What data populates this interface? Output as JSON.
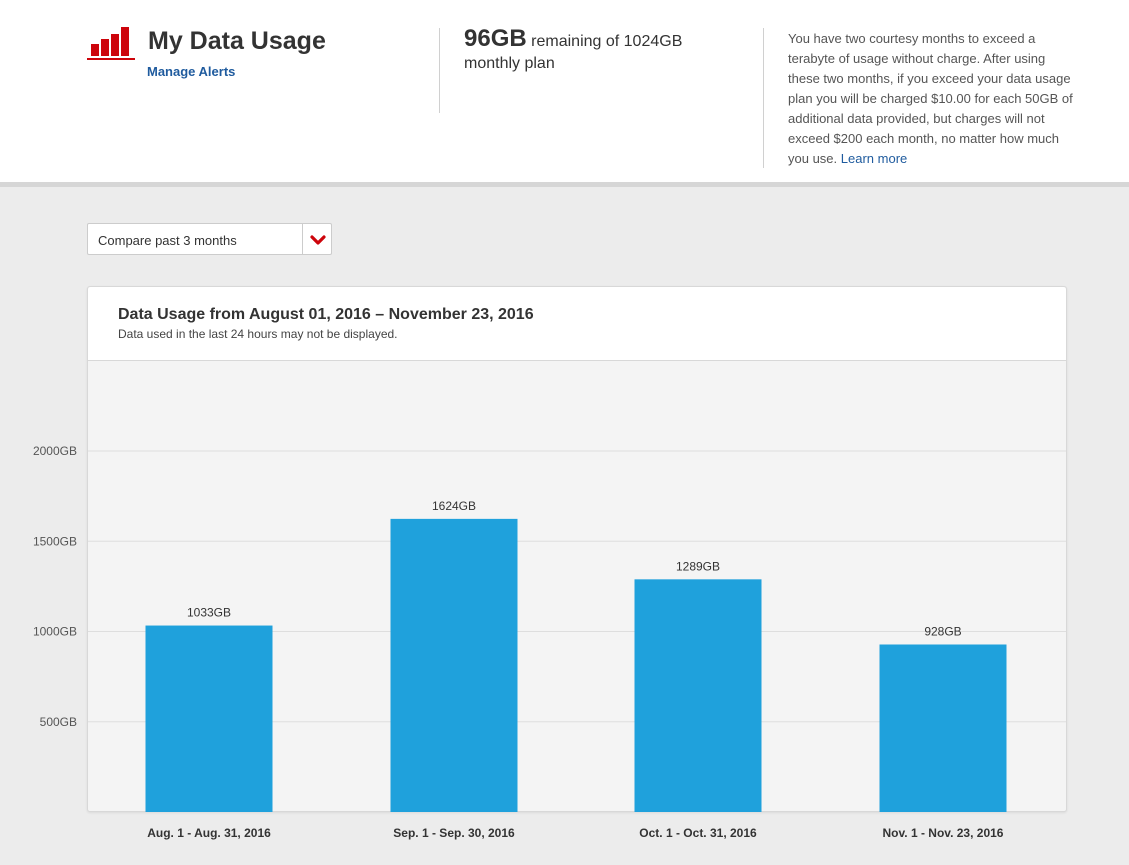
{
  "header": {
    "title": "My Data Usage",
    "manage_alerts": "Manage Alerts",
    "remaining_amount": "96GB",
    "remaining_text": "remaining of 1024GB",
    "plan_text": "monthly plan",
    "note": "You have two courtesy months to exceed a terabyte of usage without charge. After using these two months, if you exceed your data usage plan you will be charged $10.00 for each 50GB of additional data provided, but charges will not exceed $200 each month, no matter how much you use.",
    "learn_more": "Learn more",
    "logo_icon": "bar-chart-icon"
  },
  "compare": {
    "selected": "Compare past 3 months",
    "icon": "chevron-down-icon"
  },
  "card": {
    "title": "Data Usage from August 01, 2016 – November 23, 2016",
    "subtitle": "Data used in the last 24 hours may not be displayed."
  },
  "colors": {
    "brand_red": "#cd040b",
    "bar": "#1fa1dc",
    "link": "#1f5b9e"
  },
  "chart_data": {
    "type": "bar",
    "title": "Data Usage from August 01, 2016 – November 23, 2016",
    "categories": [
      "Aug. 1 - Aug. 31, 2016",
      "Sep. 1 - Sep. 30, 2016",
      "Oct. 1 - Oct. 31, 2016",
      "Nov. 1 - Nov. 23, 2016"
    ],
    "values": [
      1033,
      1624,
      1289,
      928
    ],
    "value_labels": [
      "1033GB",
      "1624GB",
      "1289GB",
      "928GB"
    ],
    "yticks": [
      500,
      1000,
      1500,
      2000
    ],
    "ytick_labels": [
      "500GB",
      "1000GB",
      "1500GB",
      "2000GB"
    ],
    "ylim": [
      0,
      2500
    ],
    "grid": true,
    "xlabel": "",
    "ylabel": ""
  }
}
